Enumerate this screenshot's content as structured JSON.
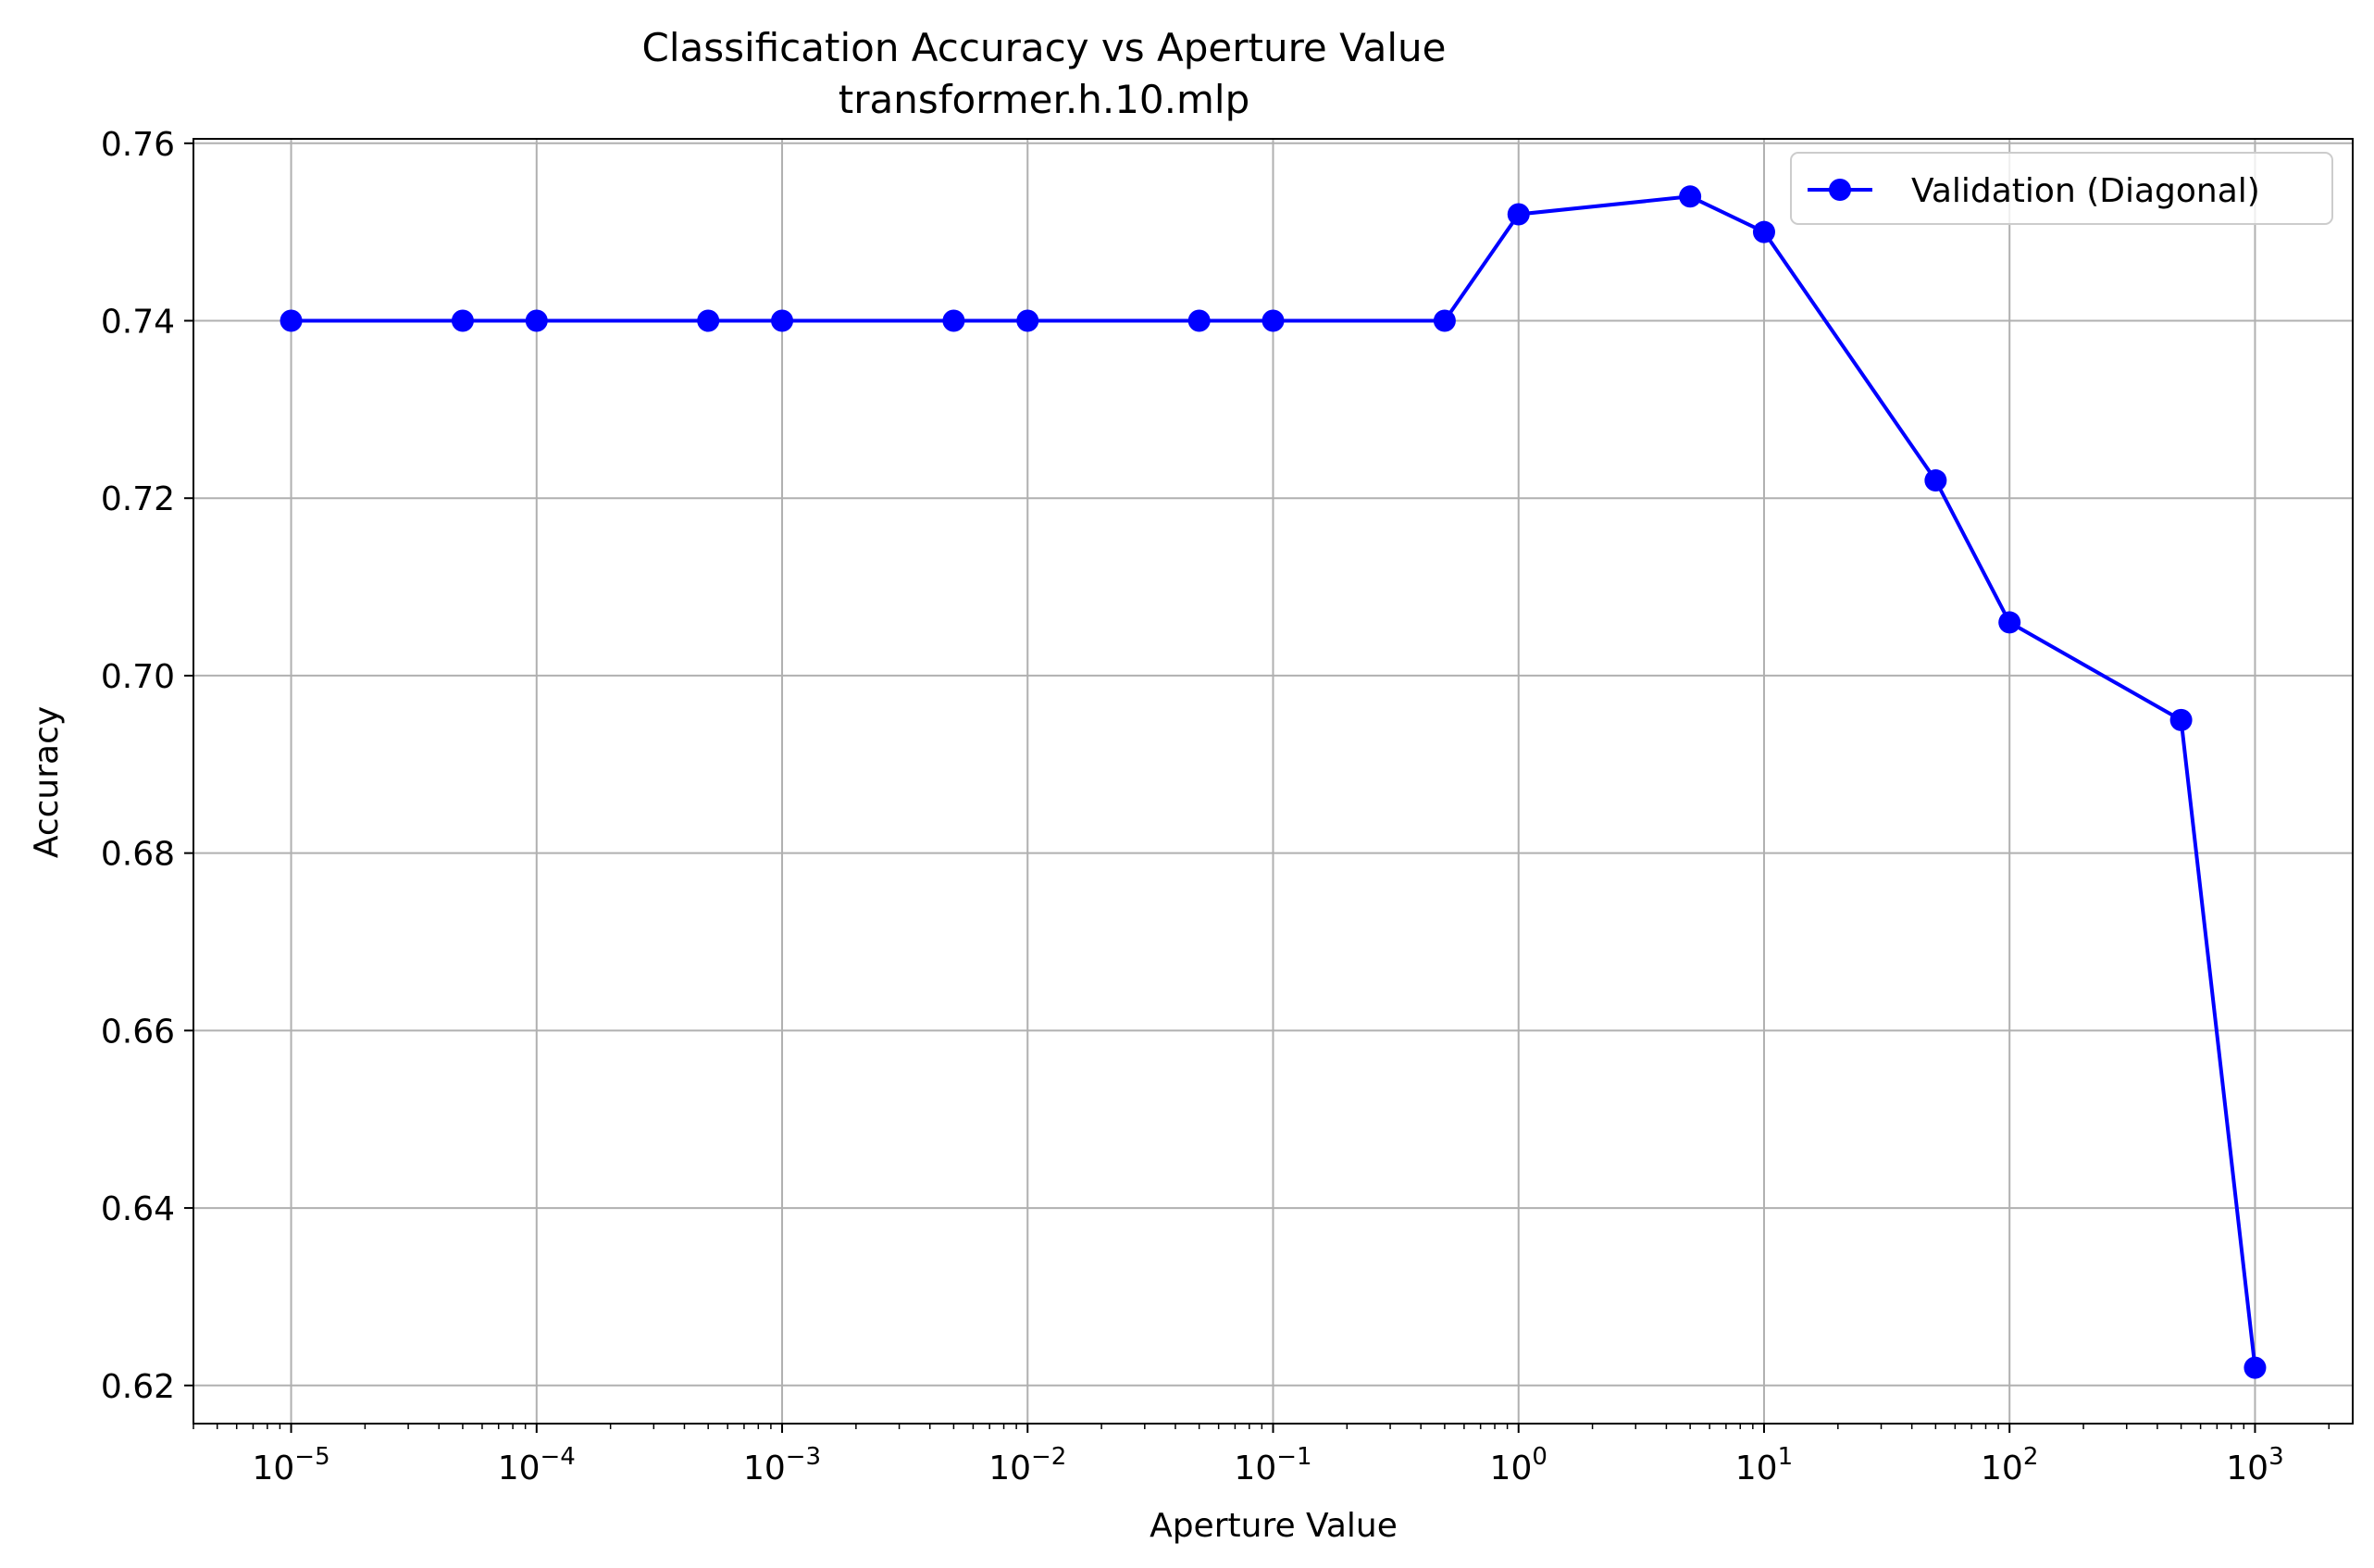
{
  "chart_data": {
    "type": "line",
    "title": "Classification Accuracy vs Aperture Value",
    "subtitle": "transformer.h.10.mlp",
    "xlabel": "Aperture Value",
    "ylabel": "Accuracy",
    "x_scale": "log",
    "xlim": [
      4e-06,
      2500
    ],
    "ylim": [
      0.6157,
      0.7605
    ],
    "grid": true,
    "legend_position": "upper right",
    "x_major_ticks": [
      {
        "value": 1e-05,
        "base": "10",
        "exp": "−5"
      },
      {
        "value": 0.0001,
        "base": "10",
        "exp": "−4"
      },
      {
        "value": 0.001,
        "base": "10",
        "exp": "−3"
      },
      {
        "value": 0.01,
        "base": "10",
        "exp": "−2"
      },
      {
        "value": 0.1,
        "base": "10",
        "exp": "−1"
      },
      {
        "value": 1,
        "base": "10",
        "exp": "0"
      },
      {
        "value": 10,
        "base": "10",
        "exp": "1"
      },
      {
        "value": 100,
        "base": "10",
        "exp": "2"
      },
      {
        "value": 1000,
        "base": "10",
        "exp": "3"
      }
    ],
    "y_ticks": [
      {
        "value": 0.62,
        "label": "0.62"
      },
      {
        "value": 0.64,
        "label": "0.64"
      },
      {
        "value": 0.66,
        "label": "0.66"
      },
      {
        "value": 0.68,
        "label": "0.68"
      },
      {
        "value": 0.7,
        "label": "0.70"
      },
      {
        "value": 0.72,
        "label": "0.72"
      },
      {
        "value": 0.74,
        "label": "0.74"
      },
      {
        "value": 0.76,
        "label": "0.76"
      }
    ],
    "series": [
      {
        "name": "Validation (Diagonal)",
        "color": "#0000ff",
        "marker": "circle",
        "x": [
          1e-05,
          5e-05,
          0.0001,
          0.0005,
          0.001,
          0.005,
          0.01,
          0.05,
          0.1,
          0.5,
          1,
          5,
          10,
          50,
          100,
          500,
          1000
        ],
        "y": [
          0.74,
          0.74,
          0.74,
          0.74,
          0.74,
          0.74,
          0.74,
          0.74,
          0.74,
          0.74,
          0.752,
          0.754,
          0.75,
          0.722,
          0.706,
          0.695,
          0.622
        ]
      }
    ]
  }
}
